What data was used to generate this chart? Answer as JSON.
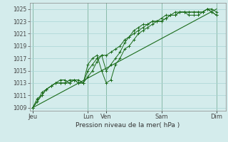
{
  "background_color": "#d4ecec",
  "grid_color": "#a8d4d4",
  "line_color": "#1a6b1a",
  "xlabel": "Pression niveau de la mer( hPa )",
  "ylim": [
    1008.5,
    1026.0
  ],
  "yticks": [
    1009,
    1011,
    1013,
    1015,
    1017,
    1019,
    1021,
    1023,
    1025
  ],
  "day_labels": [
    "Jeu",
    "",
    "Lun",
    "Ven",
    "",
    "Sam",
    "",
    "Dim"
  ],
  "day_positions": [
    0,
    48,
    72,
    96,
    132,
    168,
    204,
    240
  ],
  "day_tick_labels": [
    "Jeu",
    "",
    "Lun",
    "Ven",
    "",
    "Sam",
    "",
    "Dim"
  ],
  "total_hours": 252,
  "xlim": [
    -4,
    252
  ],
  "trend_x": [
    0,
    240
  ],
  "trend_y": [
    1009.0,
    1025.0
  ],
  "series1_x": [
    0,
    6,
    12,
    18,
    24,
    30,
    36,
    42,
    48,
    54,
    60,
    66,
    72,
    78,
    84,
    90,
    96,
    102,
    108,
    114,
    120,
    126,
    132,
    138,
    144,
    150,
    156,
    162,
    168,
    174,
    180,
    186,
    192,
    198,
    204,
    210,
    216,
    222,
    228,
    234,
    240
  ],
  "series1_y": [
    1009.0,
    1010.0,
    1011.5,
    1012.0,
    1012.5,
    1013.0,
    1013.0,
    1013.0,
    1013.0,
    1013.5,
    1013.5,
    1013.0,
    1015.0,
    1016.0,
    1017.0,
    1017.5,
    1017.5,
    1018.0,
    1018.5,
    1019.0,
    1020.0,
    1020.5,
    1021.0,
    1021.5,
    1022.0,
    1022.5,
    1023.0,
    1023.0,
    1023.0,
    1023.5,
    1024.0,
    1024.0,
    1024.5,
    1024.5,
    1024.5,
    1024.5,
    1024.5,
    1024.5,
    1025.0,
    1025.0,
    1024.5
  ],
  "series2_x": [
    0,
    6,
    12,
    18,
    24,
    30,
    36,
    42,
    48,
    54,
    60,
    66,
    72,
    78,
    84,
    90,
    96,
    102,
    108,
    114,
    120,
    126,
    132,
    138,
    144,
    150,
    156,
    162,
    168,
    174,
    180,
    186,
    192,
    198,
    204,
    210,
    216,
    222,
    228,
    234,
    240
  ],
  "series2_y": [
    1009.0,
    1010.5,
    1011.0,
    1012.0,
    1012.5,
    1013.0,
    1013.5,
    1013.5,
    1013.0,
    1013.5,
    1013.0,
    1013.0,
    1014.0,
    1015.0,
    1016.5,
    1017.5,
    1015.0,
    1016.0,
    1017.0,
    1018.0,
    1019.5,
    1020.5,
    1021.5,
    1022.0,
    1022.5,
    1022.5,
    1023.0,
    1023.0,
    1023.5,
    1024.0,
    1024.0,
    1024.5,
    1024.5,
    1024.5,
    1024.5,
    1024.5,
    1024.5,
    1024.5,
    1025.0,
    1024.5,
    1024.0
  ],
  "series3_x": [
    0,
    6,
    12,
    18,
    24,
    30,
    36,
    42,
    48,
    54,
    60,
    66,
    72,
    78,
    84,
    90,
    96,
    102,
    108,
    114,
    120,
    126,
    132,
    138,
    144,
    150,
    156,
    162,
    168,
    174,
    180,
    186,
    192,
    198,
    204,
    210,
    216,
    222,
    228,
    234,
    240
  ],
  "series3_y": [
    1009.0,
    1010.0,
    1011.0,
    1012.0,
    1012.5,
    1013.0,
    1013.0,
    1013.0,
    1013.5,
    1013.5,
    1013.0,
    1013.0,
    1016.0,
    1017.0,
    1017.5,
    1015.0,
    1013.0,
    1013.5,
    1016.0,
    1017.0,
    1018.5,
    1019.0,
    1020.0,
    1021.0,
    1021.5,
    1022.0,
    1022.5,
    1023.0,
    1023.0,
    1023.5,
    1024.0,
    1024.0,
    1024.5,
    1024.5,
    1024.0,
    1024.0,
    1024.0,
    1024.5,
    1025.0,
    1024.5,
    1024.0
  ]
}
